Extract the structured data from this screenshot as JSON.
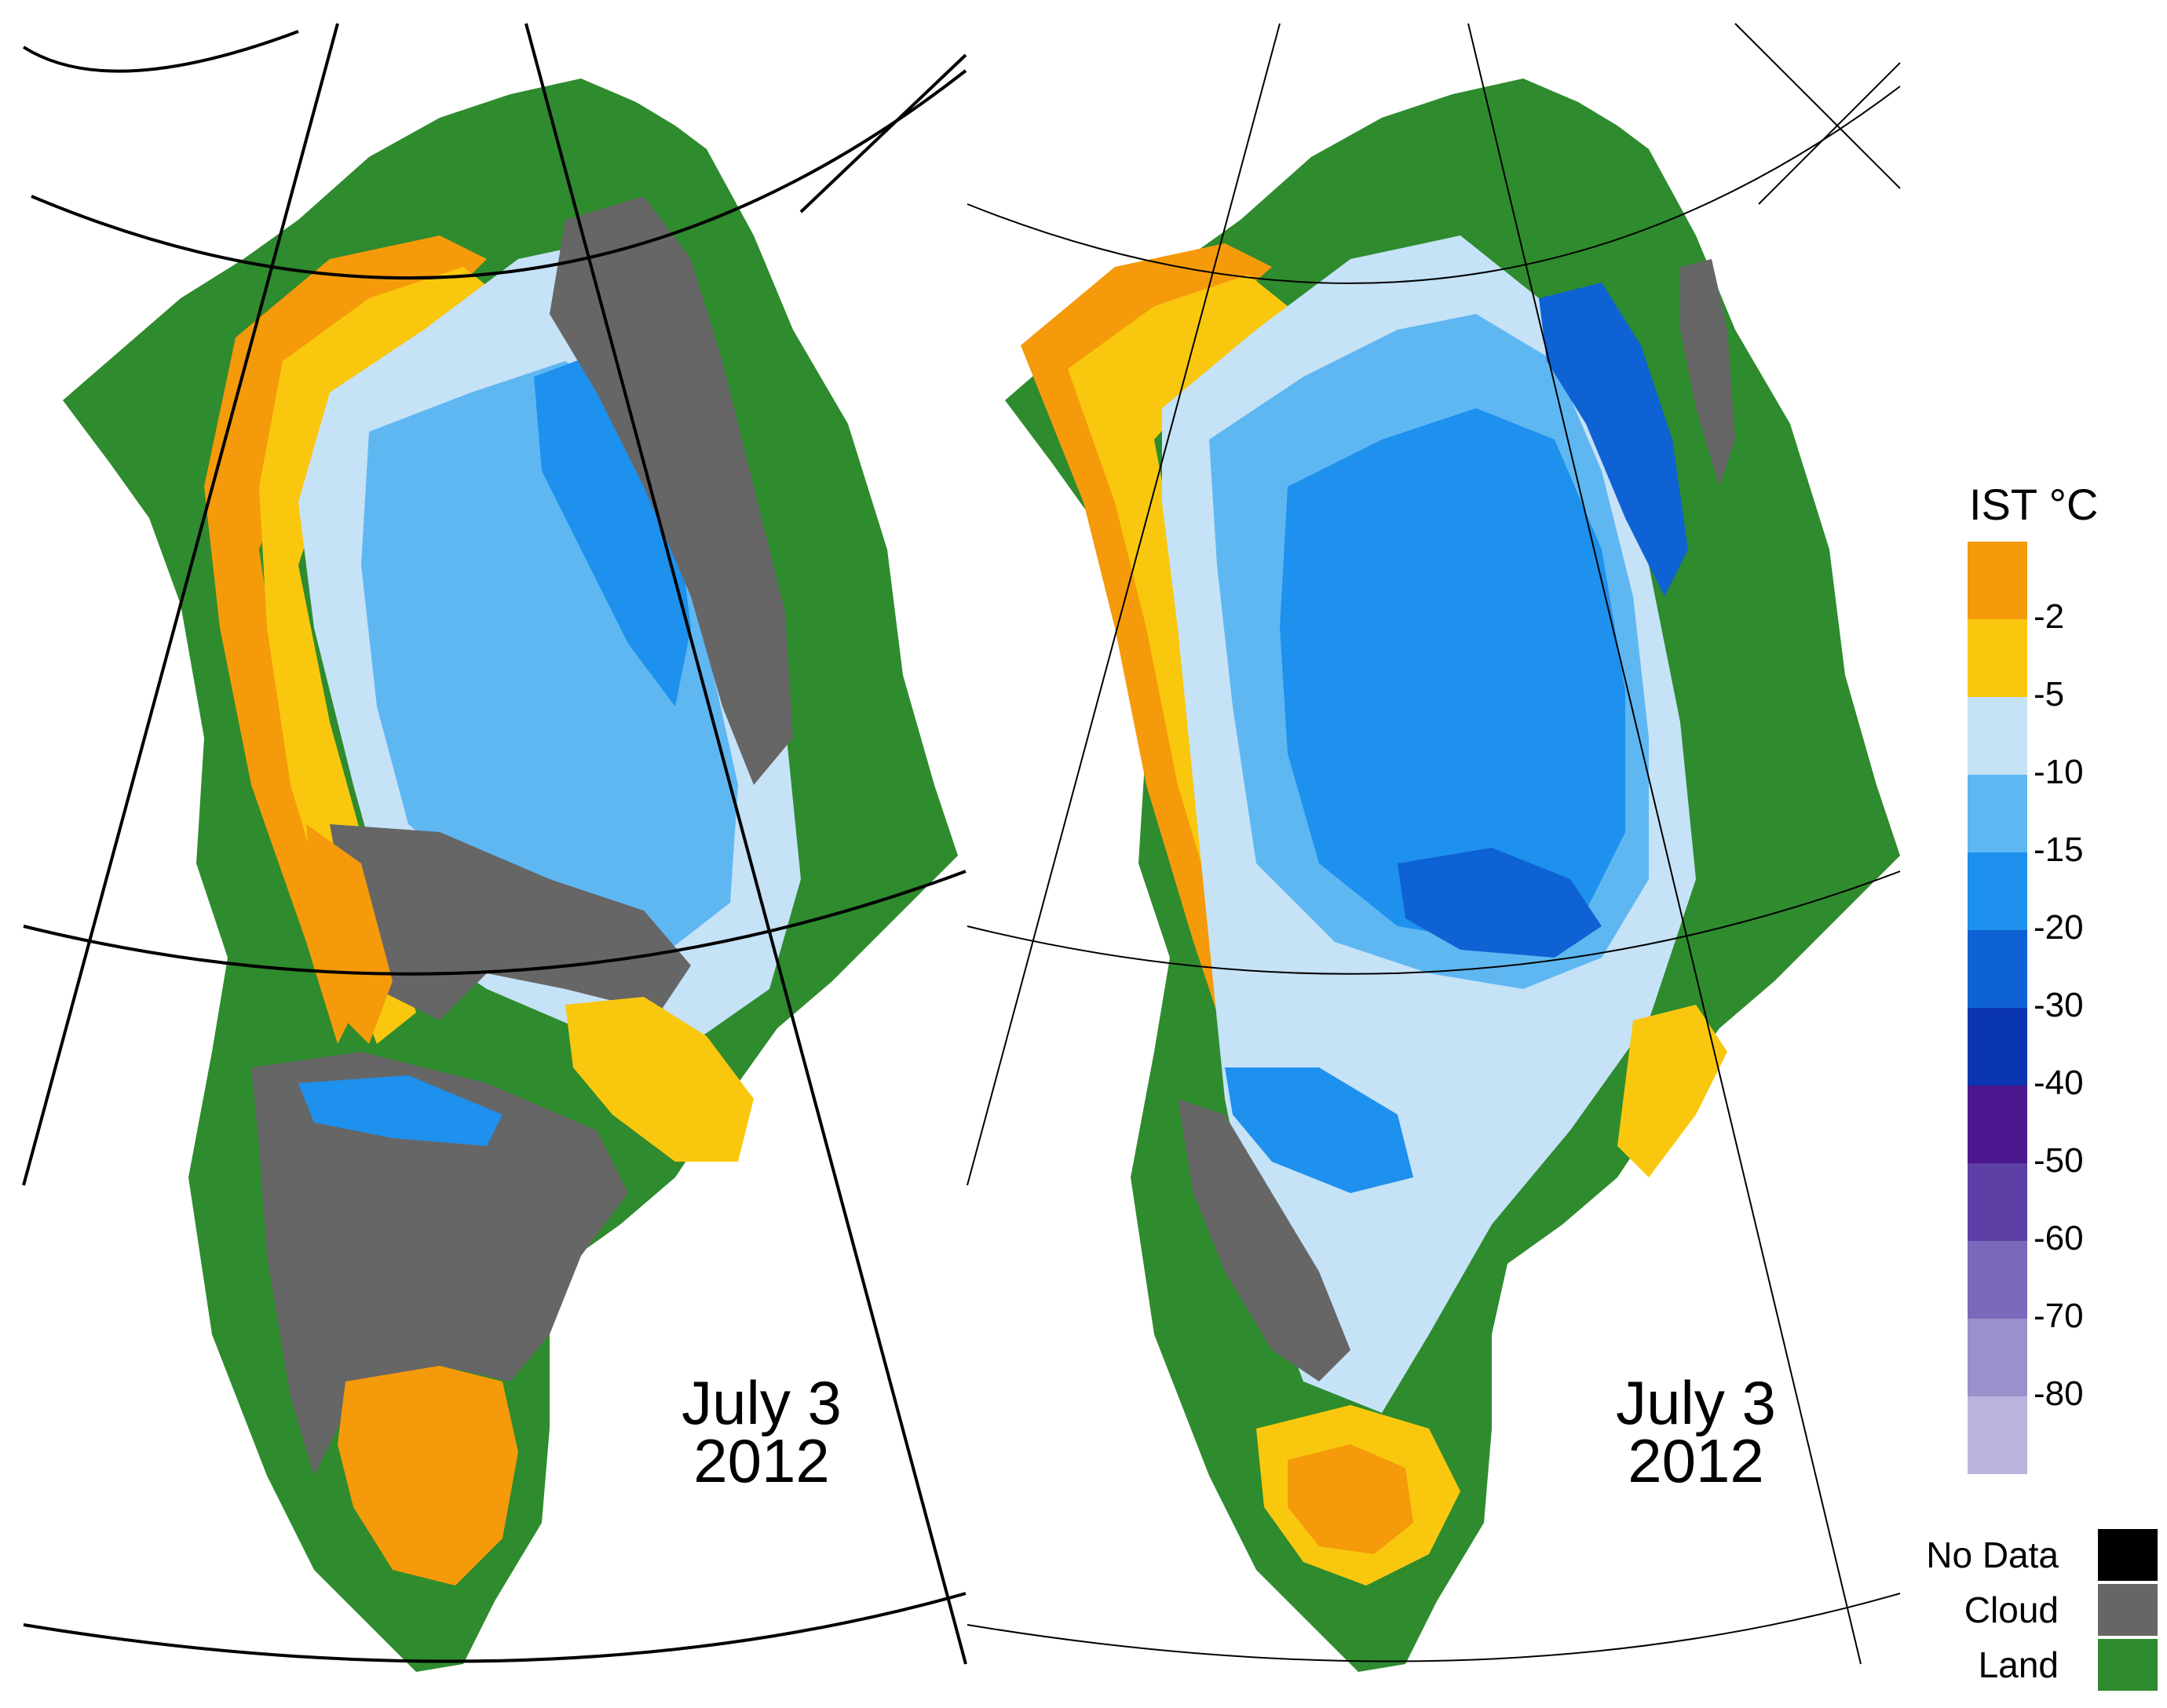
{
  "maps": [
    {
      "id": "left",
      "date_line1": "July 3",
      "date_line2": "2012"
    },
    {
      "id": "right",
      "date_line1": "July 3",
      "date_line2": "2012"
    }
  ],
  "legend": {
    "title": "IST °C",
    "ramp_colors": [
      "#f59a0a",
      "#f9c80e",
      "#c5e2f7",
      "#5fb7f2",
      "#1e90ee",
      "#0f62d4",
      "#0a36b0",
      "#4a178f",
      "#5e3fa5",
      "#7a68ba",
      "#9a91cc",
      "#b9b5df"
    ],
    "tick_labels": [
      "-2",
      "-5",
      "-10",
      "-15",
      "-20",
      "-30",
      "-40",
      "-50",
      "-60",
      "-70",
      "-80"
    ],
    "categories": [
      {
        "label": "No Data",
        "color": "#000000"
      },
      {
        "label": "Cloud",
        "color": "#666666"
      },
      {
        "label": "Land",
        "color": "#2e8b2e"
      }
    ]
  },
  "colors": {
    "orange": "#f59a0a",
    "yellow": "#f9c80e",
    "lightblue": "#c5e2f7",
    "midblue": "#5fb7f2",
    "blue": "#1e90ee",
    "darkblue": "#0f62d4",
    "cloud": "#666666",
    "land": "#2e8b2e"
  }
}
